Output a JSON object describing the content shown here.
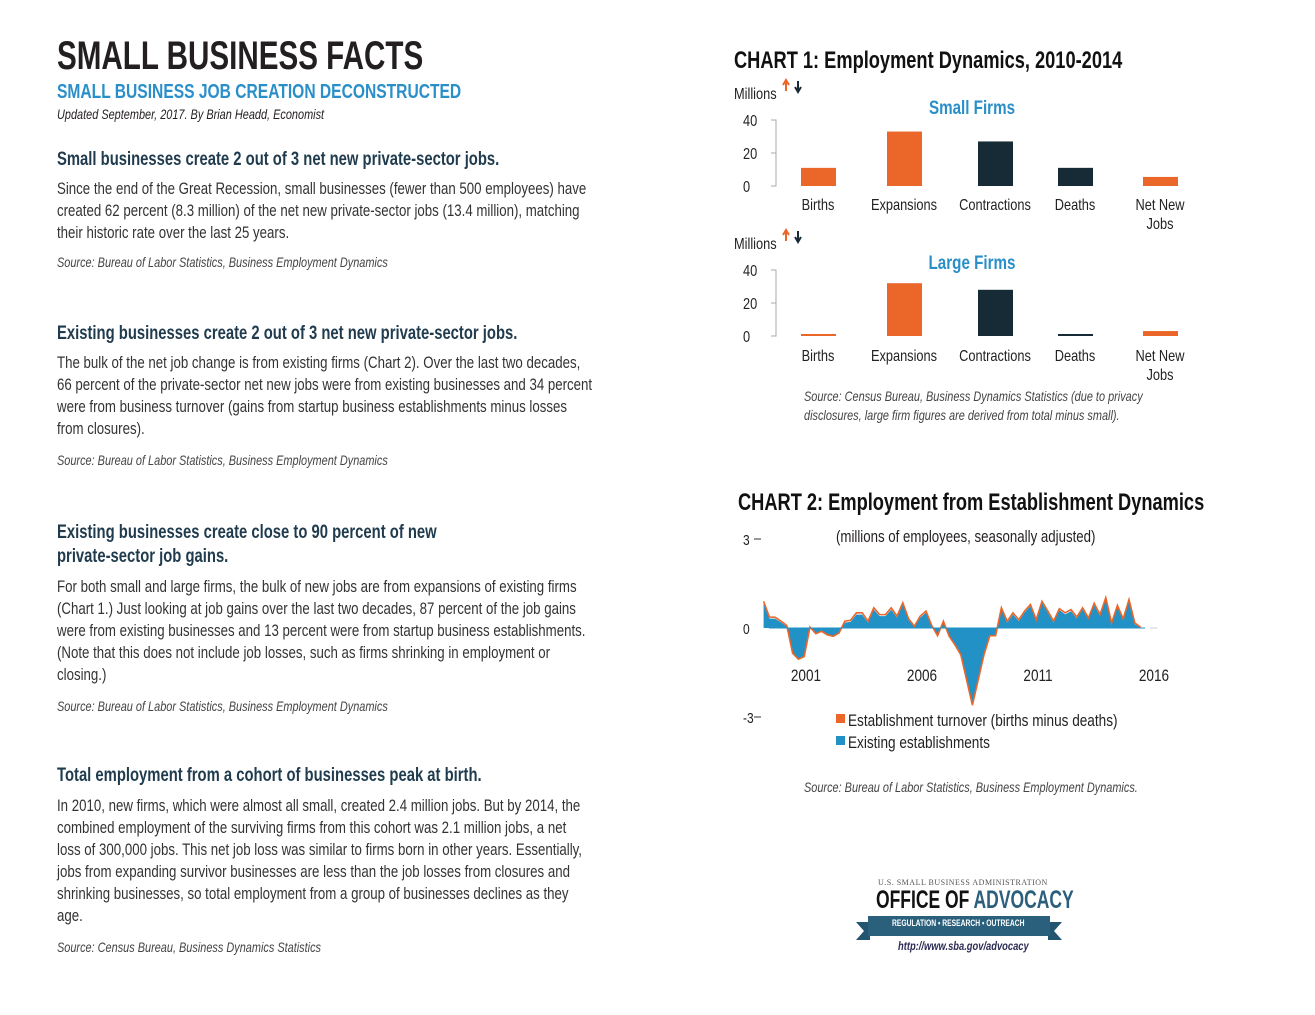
{
  "header": {
    "title": "SMALL BUSINESS FACTS",
    "subtitle": "SMALL BUSINESS JOB CREATION DECONSTRUCTED",
    "updated": "Updated September, 2017. By Brian Headd, Economist"
  },
  "sections": [
    {
      "heading": [
        "Small businesses create 2 out of 3 net new private-sector jobs."
      ],
      "body": [
        "Since the end of the Great Recession, small businesses (fewer than 500 employees) have",
        "created 62 percent (8.3 million) of the net new private-sector jobs (13.4 million), matching",
        "their historic rate over the last 25 years."
      ],
      "source": "Source: Bureau of Labor Statistics, Business Employment Dynamics"
    },
    {
      "heading": [
        "Existing businesses create 2 out of 3 net new private-sector jobs."
      ],
      "body": [
        "The bulk of the net job change is from existing firms (Chart 2).  Over the last two decades,",
        "66 percent of the private-sector net new jobs were from existing businesses and 34 percent",
        "were from business turnover (gains from startup business establishments minus losses",
        "from closures)."
      ],
      "source": "Source: Bureau of Labor Statistics, Business Employment Dynamics"
    },
    {
      "heading": [
        "Existing businesses create close to 90 percent of new",
        "private-sector job gains."
      ],
      "body": [
        "For both small and large firms, the bulk of new jobs are from expansions of existing firms",
        "(Chart 1.)  Just looking at job gains over the last two decades, 87 percent of the job gains",
        "were from existing businesses and 13 percent were from startup business establishments.",
        "(Note that this does not include job losses, such as firms shrinking in employment or",
        "closing.)"
      ],
      "source": "Source: Bureau of Labor Statistics, Business Employment Dynamics"
    },
    {
      "heading": [
        "Total employment from a cohort of businesses peak at birth."
      ],
      "body": [
        "In 2010, new firms, which were almost all small, created 2.4 million jobs.  But by 2014, the",
        "combined employment of the surviving firms from this cohort was 2.1 million jobs, a net",
        "loss of 300,000 jobs.  This net job loss was similar to firms born in other years.  Essentially,",
        "jobs from expanding survivor businesses are less than the job losses from closures and",
        "shrinking businesses, so total employment from a group of businesses declines as they",
        "age."
      ],
      "source": "Source: Census Bureau, Business Dynamics Statistics"
    }
  ],
  "colors": {
    "orange": "#ea6629",
    "navy": "#172b36",
    "blue": "#2191c6",
    "title_blue": "#2a8fc9"
  },
  "chart_data": [
    {
      "type": "bar",
      "title": "CHART 1: Employment Dynamics, 2010-2014",
      "panel_title": "Small Firms",
      "ylabel": "Millions",
      "yticks": [
        "40",
        "20",
        "0"
      ],
      "ylim": [
        0,
        40
      ],
      "categories": [
        "Births",
        "Expansions",
        "Contractions",
        "Deaths",
        "Net New Jobs"
      ],
      "values": [
        11,
        33,
        27,
        11,
        5.5
      ],
      "bar_colors": [
        "orange",
        "orange",
        "navy",
        "navy",
        "orange"
      ],
      "legend_icons": [
        "arrow-up-icon",
        "arrow-down-icon"
      ]
    },
    {
      "type": "bar",
      "panel_title": "Large Firms",
      "ylabel": "Millions",
      "yticks": [
        "40",
        "20",
        "0"
      ],
      "ylim": [
        0,
        40
      ],
      "categories": [
        "Births",
        "Expansions",
        "Contractions",
        "Deaths",
        "Net New Jobs"
      ],
      "values": [
        1,
        32,
        28,
        1,
        3
      ],
      "bar_colors": [
        "orange",
        "orange",
        "navy",
        "navy",
        "orange"
      ],
      "source": "Source: Census Bureau, Business Dynamics Statistics (due to privacy disclosures, large firm figures are derived from total minus small).",
      "source_lines": [
        "Source: Census Bureau, Business Dynamics Statistics (due to privacy",
        "disclosures, large firm figures are derived from total minus small)."
      ]
    },
    {
      "type": "area",
      "title": "CHART 2: Employment from Establishment Dynamics",
      "subtitle": "(millions of employees, seasonally adjusted)",
      "yticks": [
        "3",
        "0",
        "-3"
      ],
      "ylim": [
        -3,
        3
      ],
      "xticks": [
        "2001",
        "2006",
        "2011",
        "2016"
      ],
      "x": [
        "1999Q2",
        "1999Q3",
        "1999Q4",
        "2000Q1",
        "2000Q2",
        "2000Q3",
        "2000Q4",
        "2001Q1",
        "2001Q2",
        "2001Q3",
        "2001Q4",
        "2002Q1",
        "2002Q2",
        "2002Q3",
        "2002Q4",
        "2003Q1",
        "2003Q2",
        "2003Q3",
        "2003Q4",
        "2004Q1",
        "2004Q2",
        "2004Q3",
        "2004Q4",
        "2005Q1",
        "2005Q2",
        "2005Q3",
        "2005Q4",
        "2006Q1",
        "2006Q2",
        "2006Q3",
        "2006Q4",
        "2007Q1",
        "2007Q2",
        "2007Q3",
        "2007Q4",
        "2008Q1",
        "2008Q2",
        "2008Q3",
        "2008Q4",
        "2009Q1",
        "2009Q2",
        "2009Q3",
        "2009Q4",
        "2010Q1",
        "2010Q2",
        "2010Q3",
        "2010Q4",
        "2011Q1",
        "2011Q2",
        "2011Q3",
        "2011Q4",
        "2012Q1",
        "2012Q2",
        "2012Q3",
        "2012Q4",
        "2013Q1",
        "2013Q2",
        "2013Q3",
        "2013Q4",
        "2014Q1",
        "2014Q2",
        "2014Q3",
        "2014Q4",
        "2015Q1",
        "2015Q2",
        "2015Q3"
      ],
      "series": [
        {
          "name": "Existing establishments",
          "color": "blue",
          "values": [
            0.85,
            0.32,
            0.31,
            0.19,
            0.05,
            -0.85,
            -1.05,
            -0.96,
            0.0,
            -0.19,
            -0.11,
            -0.23,
            -0.28,
            -0.17,
            0.18,
            0.21,
            0.45,
            0.45,
            0.18,
            0.62,
            0.4,
            0.4,
            0.62,
            0.35,
            0.8,
            0.27,
            0.03,
            0.35,
            0.52,
            0.05,
            -0.26,
            0.2,
            -0.28,
            -0.57,
            -0.9,
            -1.75,
            -2.6,
            -1.75,
            -0.9,
            -0.26,
            -0.26,
            0.63,
            0.18,
            0.46,
            0.23,
            0.52,
            0.74,
            0.23,
            0.85,
            0.52,
            0.18,
            0.6,
            0.46,
            0.57,
            0.32,
            0.63,
            0.3,
            0.78,
            0.4,
            0.97,
            0.13,
            0.71,
            0.27,
            0.91,
            0.13,
            0.01
          ]
        },
        {
          "name": "Establishment turnover (births minus deaths)",
          "color": "orange",
          "values": [
            0.05,
            0.05,
            0.05,
            0.04,
            0.03,
            0.0,
            0.0,
            0.0,
            0.03,
            0.0,
            0.0,
            0.0,
            0.0,
            0.0,
            0.05,
            0.05,
            0.06,
            0.06,
            0.05,
            0.06,
            0.05,
            0.05,
            0.06,
            0.05,
            0.05,
            0.04,
            0.03,
            0.05,
            0.05,
            0.03,
            0.0,
            0.03,
            0.0,
            0.0,
            0.0,
            0.0,
            0.0,
            0.0,
            0.0,
            0.0,
            0.0,
            0.05,
            0.05,
            0.05,
            0.05,
            0.05,
            0.05,
            0.05,
            0.05,
            0.05,
            0.05,
            0.05,
            0.05,
            0.05,
            0.05,
            0.05,
            0.04,
            0.05,
            0.05,
            0.05,
            0.04,
            0.05,
            0.04,
            0.05,
            0.04,
            0.02
          ]
        }
      ],
      "legend": [
        "Establishment turnover (births minus deaths)",
        "Existing establishments"
      ],
      "source": "Source: Bureau of Labor Statistics, Business Employment Dynamics."
    }
  ],
  "logo": {
    "agency": "U.S. SMALL BUSINESS ADMINISTRATION",
    "office_of": "OFFICE OF ",
    "advocacy": "ADVOCACY",
    "ribbon": "REGULATION  •  RESEARCH  •  OUTREACH",
    "url": "http://www.sba.gov/advocacy"
  }
}
